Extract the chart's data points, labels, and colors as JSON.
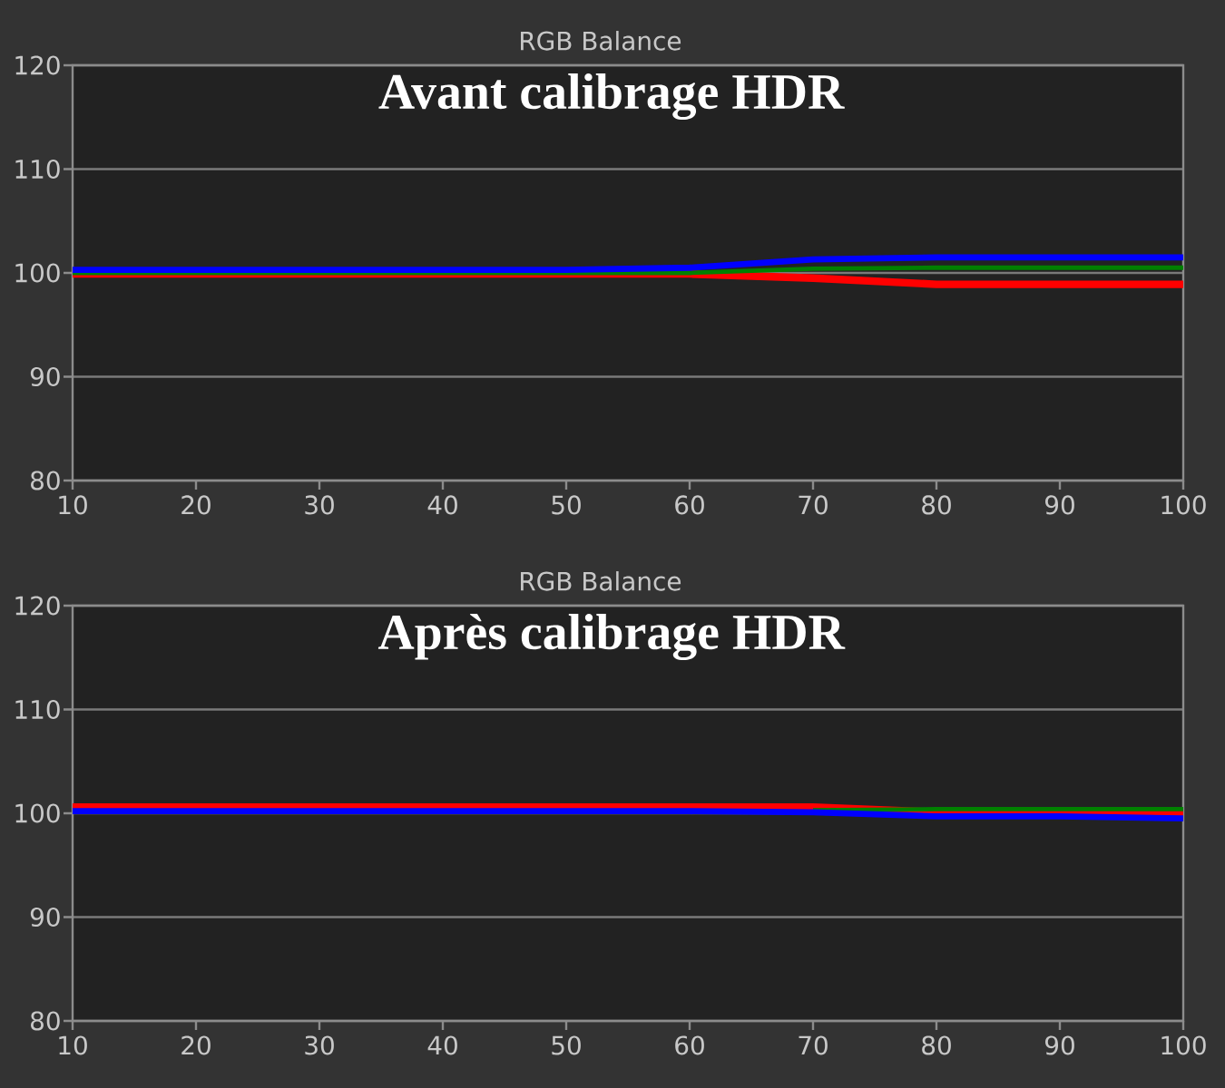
{
  "chart_data": [
    {
      "type": "line",
      "title": "RGB Balance",
      "annotations": [
        "Avant calibrage HDR"
      ],
      "x": [
        10,
        20,
        30,
        40,
        50,
        60,
        70,
        80,
        90,
        100
      ],
      "series": [
        {
          "color": "#ff0000",
          "values": [
            99.9,
            99.9,
            99.9,
            99.9,
            99.9,
            99.9,
            99.5,
            98.9,
            98.9,
            98.9
          ]
        },
        {
          "color": "#008000",
          "values": [
            100,
            100,
            100,
            100,
            100,
            100,
            100.4,
            100.5,
            100.5,
            100.5
          ]
        },
        {
          "color": "#0000ff",
          "values": [
            100.3,
            100.3,
            100.3,
            100.3,
            100.3,
            100.5,
            101.3,
            101.5,
            101.5,
            101.5
          ]
        }
      ],
      "xlim": [
        10,
        100
      ],
      "ylim": [
        80,
        120
      ],
      "xticks": [
        10,
        20,
        30,
        40,
        50,
        60,
        70,
        80,
        90,
        100
      ],
      "yticks": [
        80,
        90,
        100,
        110,
        120
      ],
      "grid": "y"
    },
    {
      "type": "line",
      "title": "RGB Balance",
      "annotations": [
        "Après calibrage HDR"
      ],
      "x": [
        10,
        20,
        30,
        40,
        50,
        60,
        70,
        80,
        90,
        100
      ],
      "series": [
        {
          "color": "#ff0000",
          "values": [
            100.6,
            100.6,
            100.6,
            100.6,
            100.6,
            100.6,
            100.6,
            100.1,
            100.1,
            100.1
          ]
        },
        {
          "color": "#008000",
          "values": [
            null,
            null,
            null,
            null,
            null,
            null,
            100.3,
            100.4,
            100.4,
            100.4
          ]
        },
        {
          "color": "#0000ff",
          "values": [
            100.2,
            100.2,
            100.2,
            100.2,
            100.2,
            100.2,
            100.1,
            99.7,
            99.7,
            99.5
          ]
        }
      ],
      "xlim": [
        10,
        100
      ],
      "ylim": [
        80,
        120
      ],
      "xticks": [
        10,
        20,
        30,
        40,
        50,
        60,
        70,
        80,
        90,
        100
      ],
      "yticks": [
        80,
        90,
        100,
        110,
        120
      ],
      "grid": "y"
    }
  ]
}
